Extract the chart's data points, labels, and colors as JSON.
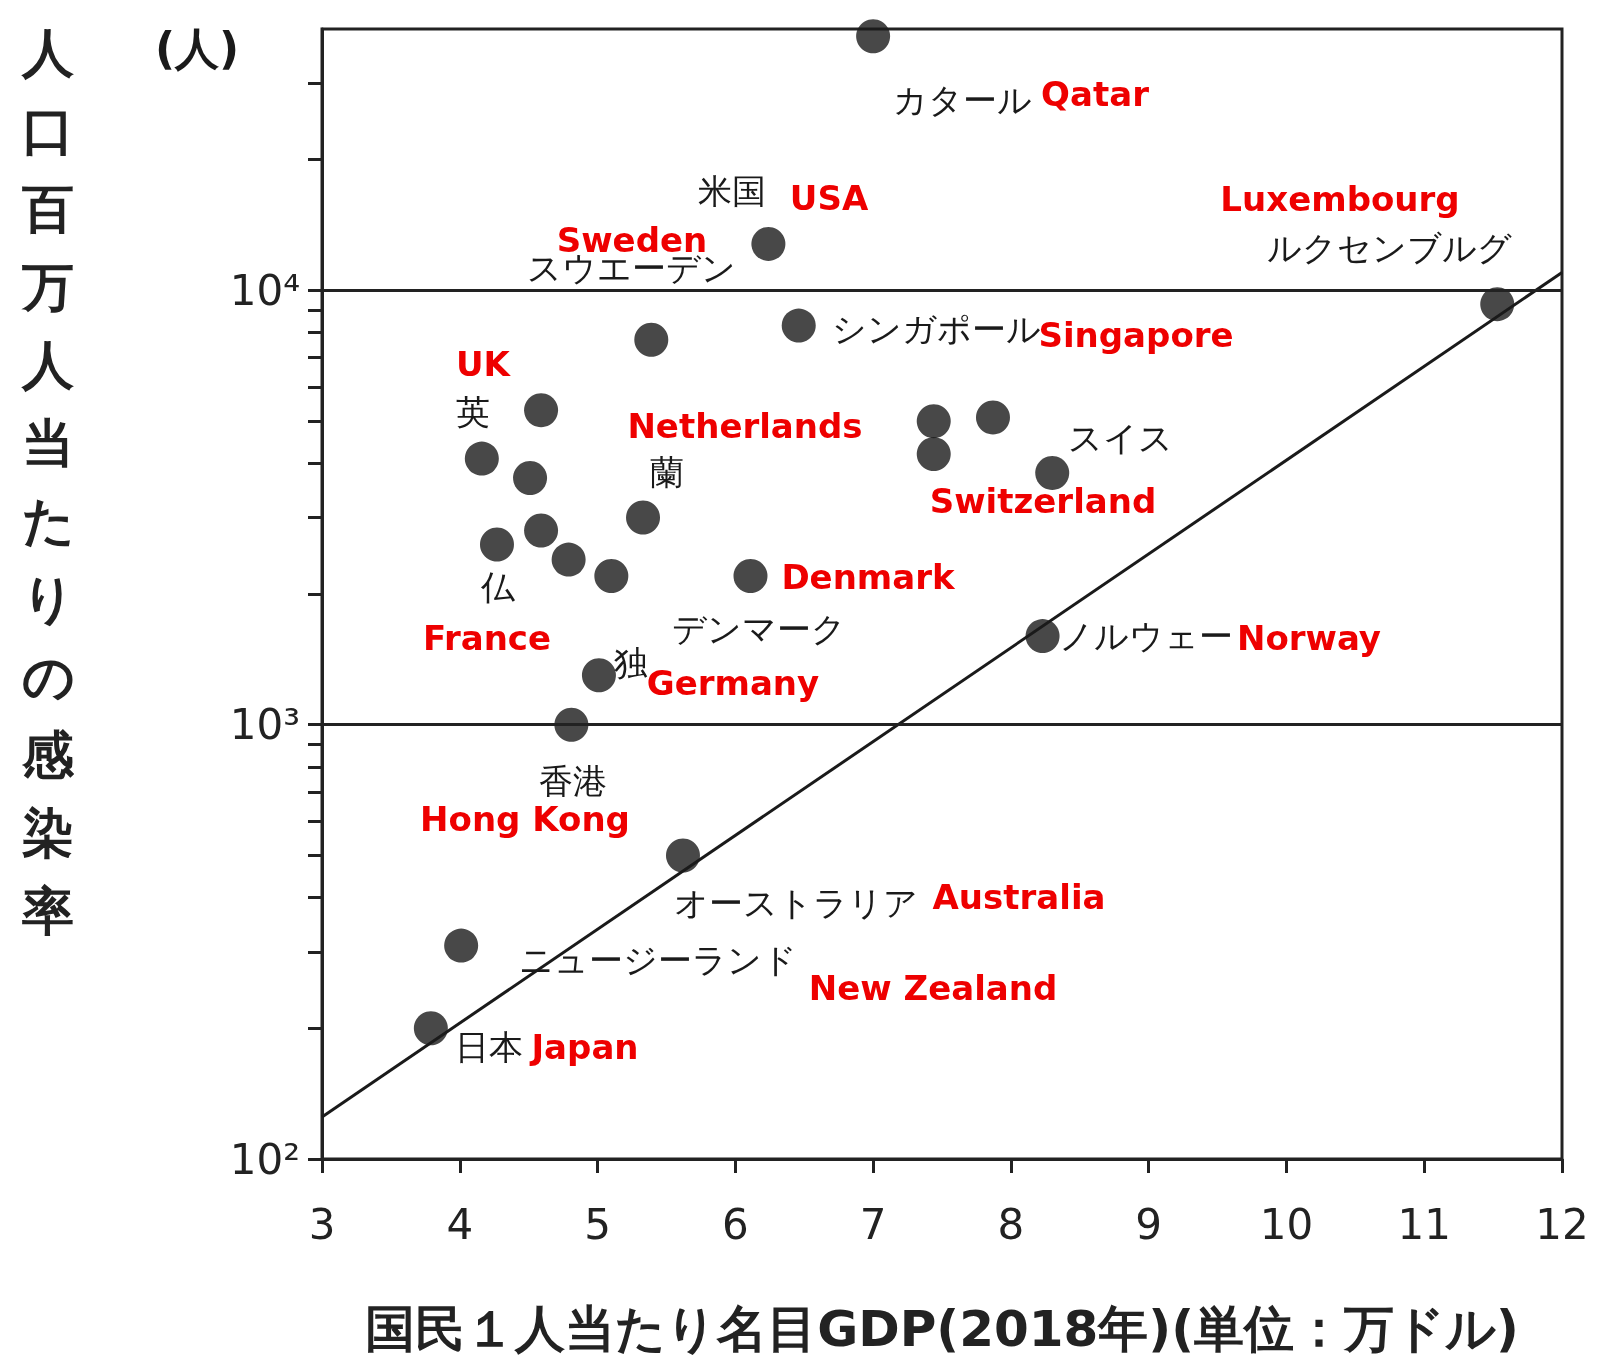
{
  "chart_data": {
    "type": "scatter",
    "xlabel": "国民１人当たり名目GDP(2018年)(単位：万ドル)",
    "ylabel": "人口百万人当たりの感染率",
    "log": "y",
    "grid": false,
    "marker": "circle",
    "xlim": [
      3,
      12
    ],
    "xticks": [
      3,
      4,
      5,
      6,
      7,
      8,
      9,
      10,
      11,
      12
    ],
    "ylim": [
      100,
      40000
    ],
    "yticks": [
      {
        "value": 100,
        "label": "10²"
      },
      {
        "value": 200,
        "label": null
      },
      {
        "value": 300,
        "label": null
      },
      {
        "value": 400,
        "label": null
      },
      {
        "value": 500,
        "label": null
      },
      {
        "value": 600,
        "label": null
      },
      {
        "value": 700,
        "label": null
      },
      {
        "value": 800,
        "label": null
      },
      {
        "value": 900,
        "label": null
      },
      {
        "value": 1000,
        "label": "10³"
      },
      {
        "value": 2000,
        "label": null
      },
      {
        "value": 3000,
        "label": null
      },
      {
        "value": 4000,
        "label": null
      },
      {
        "value": 5000,
        "label": null
      },
      {
        "value": 6000,
        "label": null
      },
      {
        "value": 7000,
        "label": null
      },
      {
        "value": 8000,
        "label": null
      },
      {
        "value": 9000,
        "label": null
      },
      {
        "value": 10000,
        "label": "10⁴"
      },
      {
        "value": 20000,
        "label": null
      },
      {
        "value": 30000,
        "label": null
      }
    ],
    "ref_lines": [
      {
        "axis": "y",
        "value": 1000,
        "color": "#222222"
      },
      {
        "axis": "y",
        "value": 10000,
        "color": "#222222"
      }
    ],
    "series": [
      {
        "color": "#1a1a1a",
        "x": [
          7.0,
          6.24,
          5.39,
          6.46,
          11.53,
          4.59,
          4.16,
          4.51,
          4.27,
          4.59,
          4.79,
          5.1,
          5.33,
          6.11,
          5.01,
          4.81,
          7.44,
          7.44,
          7.87,
          8.3,
          8.23,
          5.62,
          4.01,
          3.79
        ],
        "values": [
          38500,
          12800,
          7700,
          8300,
          9300,
          5300,
          4100,
          3700,
          2600,
          2800,
          2400,
          2200,
          3000,
          2200,
          1300,
          1000,
          5000,
          4200,
          5100,
          3800,
          1600,
          500,
          310,
          200
        ]
      },
      {
        "type": "line",
        "color": "#1a1a1a",
        "marker": "none",
        "x": [
          3,
          12
        ],
        "values": [
          125,
          11000
        ]
      }
    ],
    "annotations": [
      "(人)",
      "カタール",
      "Qatar",
      "米国",
      "USA",
      "Sweden",
      "スウエーデン",
      "Luxembourg",
      "ルクセンブルグ",
      "シンガポール",
      "Singapore",
      "UK",
      "英",
      "Netherlands",
      "蘭",
      "スイス",
      "Switzerland",
      "仏",
      "France",
      "Denmark",
      "デンマーク",
      "独",
      "Germany",
      "ノルウェー",
      "Norway",
      "香港",
      "Hong Kong",
      "オーストラリア",
      "Australia",
      "ニュージーランド",
      "New Zealand",
      "日本",
      "Japan"
    ]
  }
}
